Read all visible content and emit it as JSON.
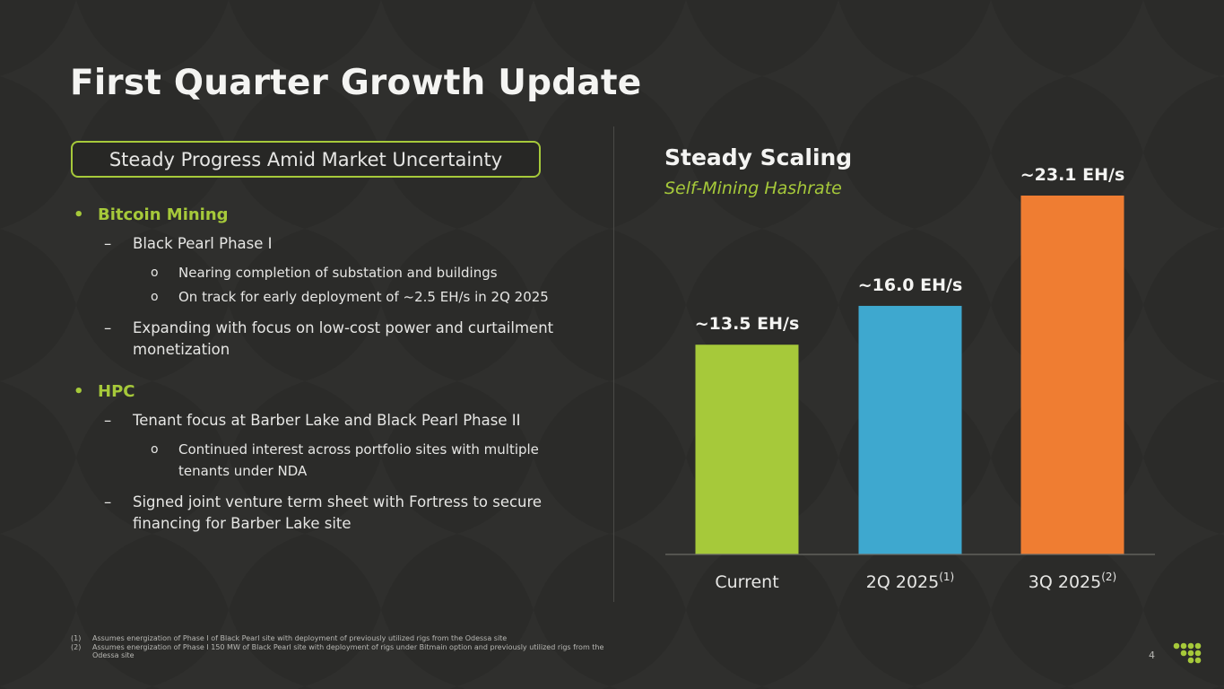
{
  "slide": {
    "title": "First Quarter Growth Update",
    "subtitle_box": "Steady Progress Amid Market Uncertainty",
    "page_number": "4",
    "accent_color": "#a6c93a"
  },
  "bullets": {
    "bitcoin_mining": {
      "heading": "Bitcoin Mining",
      "phase1": "Black Pearl Phase I",
      "phase1_sub1": "Nearing completion of substation and buildings",
      "phase1_sub2": "On track for early deployment of ~2.5 EH/s in 2Q 2025",
      "expanding": "Expanding with focus on low-cost power and curtailment monetization"
    },
    "hpc": {
      "heading": "HPC",
      "tenant": "Tenant focus at Barber Lake and Black Pearl Phase II",
      "tenant_sub1": "Continued interest across portfolio sites with multiple tenants under NDA",
      "jv": "Signed joint venture term sheet with Fortress to secure financing for Barber Lake site"
    },
    "markers": {
      "bullet": "•",
      "dash": "–",
      "circle": "o"
    }
  },
  "chart_data": {
    "type": "bar",
    "title": "Steady Scaling",
    "subtitle": "Self-Mining Hashrate",
    "categories": [
      "Current",
      "2Q 2025",
      "3Q 2025"
    ],
    "category_superscripts": [
      "",
      "(1)",
      "(2)"
    ],
    "values": [
      13.5,
      16.0,
      23.1
    ],
    "data_labels": [
      "~13.5 EH/s",
      "~16.0 EH/s",
      "~23.1 EH/s"
    ],
    "unit": "EH/s",
    "colors": [
      "#a6c93a",
      "#3ea8cf",
      "#ef7d32"
    ],
    "ylim": [
      0,
      23.1
    ]
  },
  "footnotes": [
    {
      "num": "(1)",
      "text": "Assumes energization of Phase I of Black Pearl site with deployment of previously utilized rigs from the Odessa site"
    },
    {
      "num": "(2)",
      "text": "Assumes energization of Phase I 150 MW of Black Pearl site with deployment of rigs under Bitmain option and previously utilized rigs from the Odessa site"
    }
  ]
}
